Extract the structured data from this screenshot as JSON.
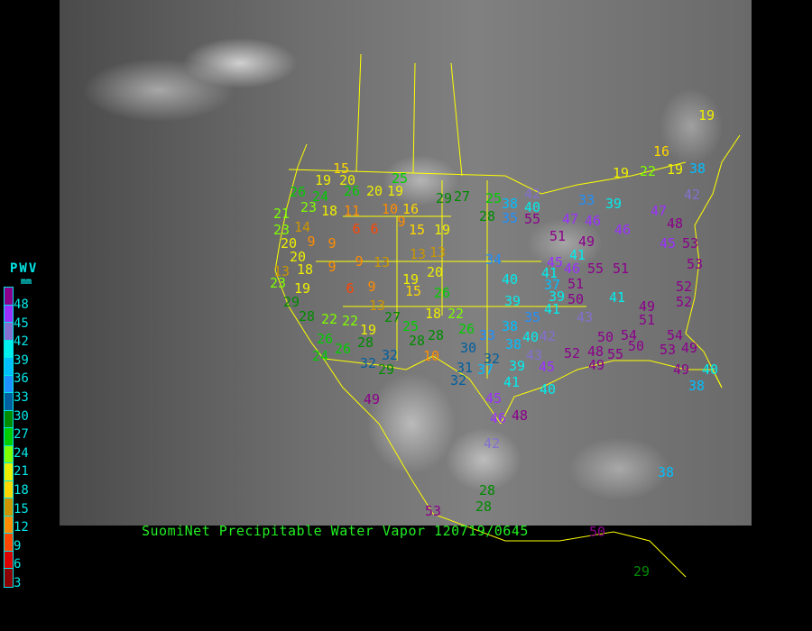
{
  "title": "SuomiNet Precipitable Water Vapor 120719/0645",
  "legend": {
    "title": "PWV",
    "unit": "mm",
    "labels": [
      "48",
      "45",
      "42",
      "39",
      "36",
      "33",
      "30",
      "27",
      "24",
      "21",
      "18",
      "15",
      "12",
      "9",
      "6",
      "3"
    ],
    "colors": [
      "#8b008b",
      "#9b30ff",
      "#8470d0",
      "#00eeee",
      "#00bfff",
      "#1e90ff",
      "#005f9f",
      "#008b00",
      "#00cd00",
      "#7fff00",
      "#eeee00",
      "#ffd700",
      "#cd9500",
      "#ff8c00",
      "#ff4500",
      "#dd0000",
      "#8b0000"
    ],
    "text_color": "#00e8e8"
  },
  "map": {
    "background": "GOES infrared satellite image (grayscale)",
    "border_color": "#ffff00",
    "station_values": [
      19,
      16,
      19,
      22,
      19,
      38,
      19,
      20,
      15,
      20,
      19,
      26,
      24,
      18,
      11,
      10,
      16,
      9,
      15,
      19,
      6,
      6,
      14,
      20,
      9,
      9,
      13,
      13,
      9,
      13,
      9,
      19,
      6,
      9,
      19,
      20,
      15,
      26,
      13,
      18,
      22,
      22,
      22,
      19,
      27,
      25,
      28,
      28,
      26,
      10,
      29,
      32,
      32,
      30,
      32,
      31,
      37,
      32,
      39,
      41,
      40,
      45,
      46,
      48,
      49,
      42,
      28,
      28,
      38,
      29,
      50,
      53,
      40,
      38,
      49,
      53,
      49,
      54,
      50,
      55,
      48,
      49,
      52,
      45,
      43,
      38,
      38,
      35,
      41,
      42,
      40,
      33,
      34,
      40,
      39,
      37,
      39,
      41,
      45,
      46,
      51,
      50,
      43,
      50,
      54,
      49,
      51,
      41,
      55,
      51,
      52,
      52,
      53,
      53,
      47,
      46,
      49,
      51,
      41,
      38,
      40,
      42,
      35,
      55,
      33,
      39,
      47,
      48,
      46,
      45,
      42,
      29,
      27,
      25,
      28,
      23,
      20,
      13,
      18,
      23,
      29,
      28,
      26,
      26,
      28,
      24,
      26,
      21,
      23,
      25
    ]
  }
}
